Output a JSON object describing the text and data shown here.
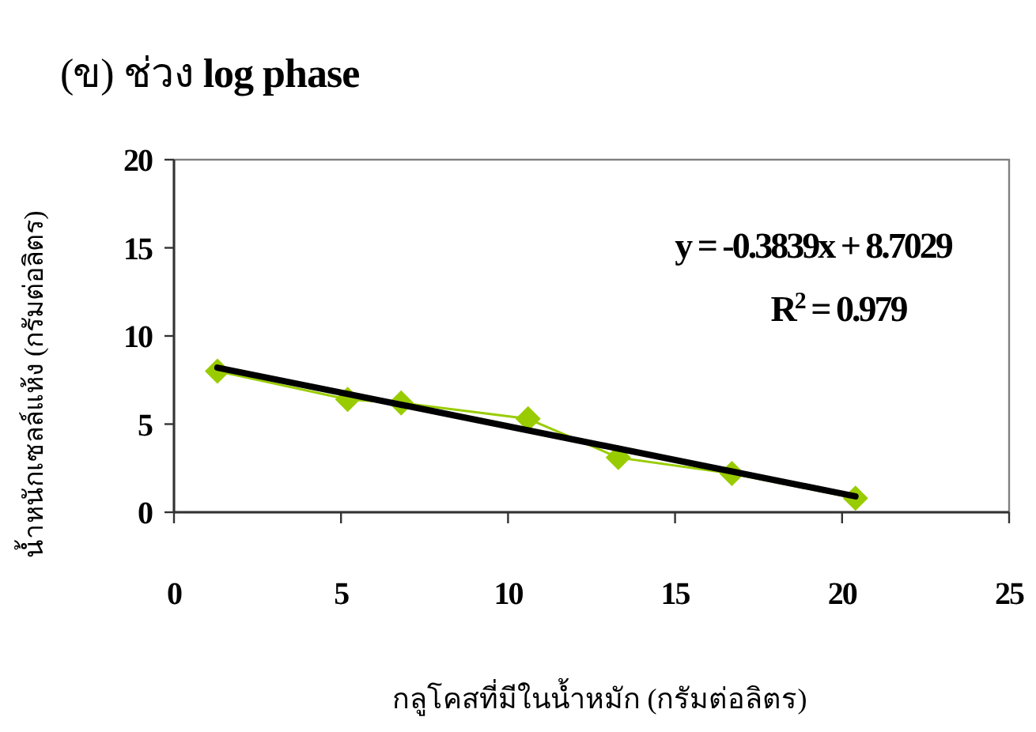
{
  "chart_data": {
    "type": "line",
    "title": "(ข) ช่วง **log phase**",
    "xlabel": "กลูโคสที่มีในน้ำหมัก (กรัมต่อลิตร)",
    "ylabel": "น้ำหนักเซลล์แห้ง (กรัมต่อลิตร)",
    "xlim": [
      0,
      25
    ],
    "xticks": [
      0,
      5,
      10,
      15,
      20,
      25
    ],
    "ylim": [
      0,
      20
    ],
    "yticks": [
      0,
      5,
      10,
      15,
      20
    ],
    "grid": false,
    "series": [
      {
        "color": "#99cc00",
        "marker": "diamond",
        "line_style": "solid",
        "x": [
          1.3,
          5.2,
          6.8,
          10.6,
          13.3,
          16.7,
          20.4
        ],
        "values": [
          8.0,
          6.4,
          6.2,
          5.3,
          3.1,
          2.2,
          0.8
        ]
      },
      {
        "color": "#000000",
        "marker": "none",
        "line_style": "solid",
        "x": [
          1.3,
          20.4
        ],
        "values": [
          8.2,
          0.9
        ]
      }
    ],
    "annotations": [
      "y = -0.3839x + 8.7029",
      "R$^{2}$ = 0.979"
    ]
  }
}
